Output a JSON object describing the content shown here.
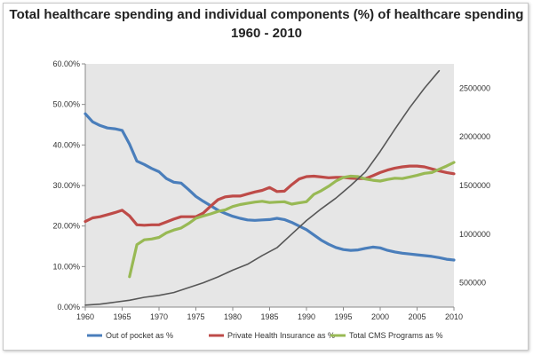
{
  "chart_data": {
    "type": "line",
    "title": "Total healthcare spending and individual components (%) of healthcare spending",
    "subtitle": "1960 - 2010",
    "x_ticks": [
      "1960",
      "1965",
      "1970",
      "1975",
      "1980",
      "1985",
      "1990",
      "1995",
      "2000",
      "2005",
      "2010"
    ],
    "xlim": [
      1960,
      2010
    ],
    "y_left_ticks": [
      "0.00%",
      "10.00%",
      "20.00%",
      "30.00%",
      "40.00%",
      "50.00%",
      "60.00%"
    ],
    "y_left_lim": [
      0,
      60
    ],
    "y_right_ticks": [
      "500000",
      "1000000",
      "1500000",
      "2000000",
      "2500000"
    ],
    "y_right_lim": [
      250000,
      2750000
    ],
    "grid": false,
    "legend_position": "bottom",
    "series": [
      {
        "name": "Out of pocket as %",
        "axis": "left",
        "color": "#4a7ebb",
        "x": [
          1960,
          1961,
          1962,
          1963,
          1964,
          1965,
          1966,
          1967,
          1968,
          1969,
          1970,
          1971,
          1972,
          1973,
          1974,
          1975,
          1976,
          1977,
          1978,
          1979,
          1980,
          1981,
          1982,
          1983,
          1984,
          1985,
          1986,
          1987,
          1988,
          1989,
          1990,
          1991,
          1992,
          1993,
          1994,
          1995,
          1996,
          1997,
          1998,
          1999,
          2000,
          2001,
          2002,
          2003,
          2004,
          2005,
          2006,
          2007,
          2008,
          2009,
          2010
        ],
        "y": [
          47.7,
          45.7,
          44.8,
          44.2,
          44.0,
          43.6,
          40.2,
          36.0,
          35.2,
          34.2,
          33.4,
          31.7,
          30.8,
          30.6,
          29.0,
          27.3,
          26.1,
          25.0,
          23.9,
          23.1,
          22.4,
          21.9,
          21.5,
          21.4,
          21.5,
          21.6,
          21.9,
          21.6,
          20.9,
          20.0,
          19.1,
          17.8,
          16.5,
          15.5,
          14.7,
          14.2,
          14.0,
          14.1,
          14.5,
          14.8,
          14.6,
          14.0,
          13.6,
          13.3,
          13.1,
          12.9,
          12.7,
          12.5,
          12.2,
          11.8,
          11.6
        ]
      },
      {
        "name": "Private Health Insurance as %",
        "axis": "left",
        "color": "#be4b48",
        "x": [
          1960,
          1961,
          1962,
          1963,
          1964,
          1965,
          1966,
          1967,
          1968,
          1969,
          1970,
          1971,
          1972,
          1973,
          1974,
          1975,
          1976,
          1977,
          1978,
          1979,
          1980,
          1981,
          1982,
          1983,
          1984,
          1985,
          1986,
          1987,
          1988,
          1989,
          1990,
          1991,
          1992,
          1993,
          1994,
          1995,
          1996,
          1997,
          1998,
          1999,
          2000,
          2001,
          2002,
          2003,
          2004,
          2005,
          2006,
          2007,
          2008,
          2009,
          2010
        ],
        "y": [
          21.1,
          22.0,
          22.3,
          22.8,
          23.3,
          23.9,
          22.5,
          20.3,
          20.2,
          20.3,
          20.3,
          21.0,
          21.7,
          22.3,
          22.3,
          22.3,
          23.2,
          24.9,
          26.5,
          27.2,
          27.4,
          27.4,
          27.9,
          28.4,
          28.8,
          29.5,
          28.5,
          28.6,
          30.2,
          31.6,
          32.2,
          32.3,
          32.1,
          31.9,
          32.0,
          32.0,
          31.8,
          31.7,
          31.7,
          32.4,
          33.2,
          33.8,
          34.3,
          34.6,
          34.8,
          34.8,
          34.6,
          34.1,
          33.6,
          33.2,
          32.9
        ]
      },
      {
        "name": "Total CMS Programs as %",
        "axis": "left",
        "color": "#98b954",
        "x": [
          1966,
          1967,
          1968,
          1969,
          1970,
          1971,
          1972,
          1973,
          1974,
          1975,
          1976,
          1977,
          1978,
          1979,
          1980,
          1981,
          1982,
          1983,
          1984,
          1985,
          1986,
          1987,
          1988,
          1989,
          1990,
          1991,
          1992,
          1993,
          1994,
          1995,
          1996,
          1997,
          1998,
          1999,
          2000,
          2001,
          2002,
          2003,
          2004,
          2005,
          2006,
          2007,
          2008,
          2009,
          2010
        ],
        "y": [
          7.5,
          15.4,
          16.6,
          16.8,
          17.2,
          18.3,
          19.0,
          19.5,
          20.6,
          21.9,
          22.5,
          23.0,
          23.6,
          24.0,
          24.8,
          25.3,
          25.6,
          25.9,
          26.1,
          25.8,
          25.9,
          26.0,
          25.4,
          25.7,
          26.0,
          27.8,
          28.7,
          29.8,
          31.1,
          32.0,
          32.3,
          32.2,
          31.6,
          31.3,
          31.1,
          31.5,
          31.8,
          31.7,
          32.1,
          32.5,
          33.0,
          33.2,
          34.0,
          34.8,
          35.7
        ]
      },
      {
        "name": "",
        "axis": "right",
        "color": "#575757",
        "x": [
          1960,
          1962,
          1964,
          1966,
          1968,
          1970,
          1972,
          1974,
          1976,
          1978,
          1980,
          1982,
          1984,
          1986,
          1988,
          1990,
          1992,
          1994,
          1996,
          1998,
          2000,
          2002,
          2004,
          2006,
          2008
        ],
        "y": [
          270000,
          280000,
          300000,
          320000,
          350000,
          370000,
          400000,
          450000,
          500000,
          560000,
          630000,
          690000,
          780000,
          860000,
          1000000,
          1140000,
          1260000,
          1370000,
          1500000,
          1640000,
          1850000,
          2080000,
          2300000,
          2500000,
          2680000
        ]
      }
    ]
  }
}
